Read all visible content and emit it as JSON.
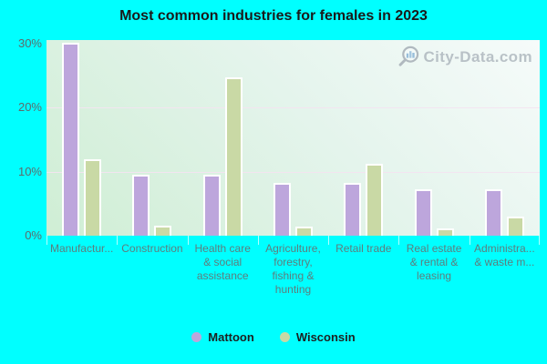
{
  "title": "Most common industries for females in 2023",
  "watermark": "City-Data.com",
  "colors": {
    "background": "#00ffff",
    "mattoon_bar": "#bda6dc",
    "wisconsin_bar": "#c9d9a5",
    "bar_border": "#ffffff",
    "plot_gradient_light": "#f6fbfa",
    "plot_gradient_green": "#cfeed4",
    "gridline": "#f3e4f0",
    "axis_text": "#5e7d7d",
    "title_text": "#1a1a1a",
    "watermark_text": "#b3bcc2"
  },
  "chart_data": {
    "type": "bar",
    "title": "Most common industries for females in 2023",
    "categories": [
      "Manufactur...",
      "Construction",
      "Health care\n& social\nassistance",
      "Agriculture,\nforestry,\nfishing &\nhunting",
      "Retail trade",
      "Real estate\n& rental &\nleasing",
      "Administra...\n& waste m..."
    ],
    "series": [
      {
        "name": "Mattoon",
        "color": "#bda6dc",
        "values": [
          29.8,
          9.2,
          9.2,
          8.0,
          8.0,
          6.9,
          6.9
        ]
      },
      {
        "name": "Wisconsin",
        "color": "#c9d9a5",
        "values": [
          11.7,
          1.3,
          24.4,
          1.1,
          10.9,
          0.8,
          2.7
        ]
      }
    ],
    "xlabel": "",
    "ylabel": "",
    "ylim": [
      0,
      30
    ],
    "y_ticks": [
      {
        "label": "0%",
        "value": 0
      },
      {
        "label": "10%",
        "value": 10
      },
      {
        "label": "20%",
        "value": 20
      },
      {
        "label": "30%",
        "value": 30
      }
    ],
    "grid": "horizontal",
    "legend_position": "bottom"
  },
  "legend": {
    "items": [
      {
        "label": "Mattoon",
        "color": "#bda6dc"
      },
      {
        "label": "Wisconsin",
        "color": "#c9d9a5"
      }
    ]
  }
}
